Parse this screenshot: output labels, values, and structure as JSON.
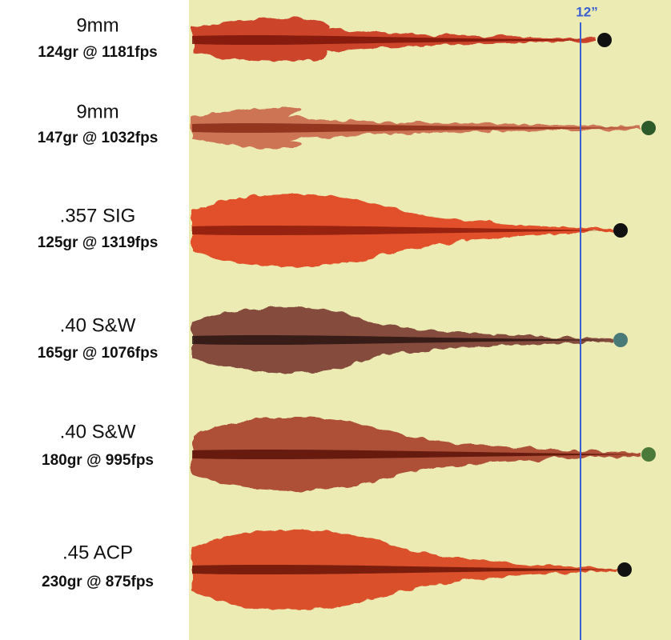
{
  "marker_label": "12”",
  "rows": [
    {
      "caliber": "9mm",
      "load": "124gr @ 1181fps"
    },
    {
      "caliber": "9mm",
      "load": "147gr @ 1032fps"
    },
    {
      "caliber": ".357 SIG",
      "load": "125gr @ 1319fps"
    },
    {
      "caliber": ".40 S&W",
      "load": "165gr @ 1076fps"
    },
    {
      "caliber": ".40 S&W",
      "load": "180gr @ 995fps"
    },
    {
      "caliber": ".45 ACP",
      "load": "230gr @ 875fps"
    }
  ]
}
